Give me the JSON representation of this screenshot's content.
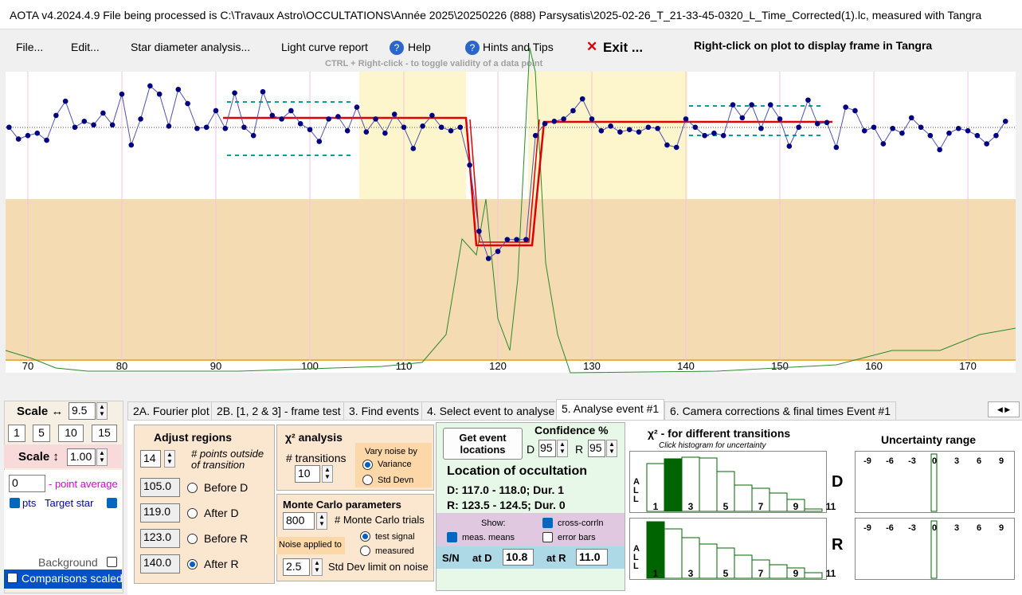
{
  "window": {
    "title": "AOTA v4.2024.4.9    File being processed is C:\\Travaux Astro\\OCCULTATIONS\\Année 2025\\20250226 (888) Parsysatis\\2025-02-26_T_21-33-45-0320_L_Time_Corrected(1).lc, measured with Tangra"
  },
  "menu": {
    "items": [
      "File...",
      "Edit...",
      "Star diameter analysis...",
      "Light curve report",
      "Help",
      "Hints and Tips",
      "Exit ..."
    ],
    "right_click_hint": "Right-click on plot to display frame in Tangra",
    "ctrl_hint": "CTRL + Right-click  -  to toggle validity of a data point"
  },
  "chart_data": {
    "type": "scatter",
    "x": [
      68,
      69,
      70,
      71,
      72,
      73,
      74,
      75,
      76,
      77,
      78,
      79,
      80,
      81,
      82,
      83,
      84,
      85,
      86,
      87,
      88,
      89,
      90,
      91,
      92,
      93,
      94,
      95,
      96,
      97,
      98,
      99,
      100,
      101,
      102,
      103,
      104,
      105,
      106,
      107,
      108,
      109,
      110,
      111,
      112,
      113,
      114,
      115,
      116,
      117,
      118,
      119,
      120,
      121,
      122,
      123,
      124,
      125,
      126,
      127,
      128,
      129,
      130,
      131,
      132,
      133,
      134,
      135,
      136,
      137,
      138,
      139,
      140,
      141,
      142,
      143,
      144,
      145,
      146,
      147,
      148,
      149,
      150,
      151,
      152,
      153,
      154,
      155,
      156,
      157,
      158,
      159,
      160,
      161,
      162,
      163,
      164,
      165,
      166,
      167,
      168,
      169,
      170,
      171,
      172,
      173,
      174
    ],
    "values": [
      1.0,
      0.9,
      0.93,
      0.95,
      0.89,
      1.1,
      1.22,
      1.0,
      1.05,
      1.02,
      1.12,
      1.02,
      1.28,
      0.85,
      1.07,
      1.35,
      1.28,
      1.01,
      1.32,
      1.2,
      0.99,
      1.0,
      1.14,
      0.99,
      1.29,
      1.0,
      0.93,
      1.3,
      1.1,
      1.07,
      1.14,
      1.03,
      0.98,
      0.88,
      1.07,
      1.09,
      0.97,
      1.17,
      0.96,
      1.07,
      0.95,
      1.11,
      1.0,
      0.82,
      1.01,
      1.1,
      1.0,
      0.97,
      1.0,
      0.68,
      0.12,
      -0.11,
      -0.05,
      0.05,
      0.05,
      0.05,
      0.93,
      1.03,
      1.05,
      1.07,
      1.14,
      1.24,
      1.07,
      0.97,
      1.01,
      0.96,
      0.98,
      0.96,
      1.0,
      0.99,
      0.85,
      0.83,
      1.07,
      1.0,
      0.93,
      0.95,
      0.93,
      1.19,
      1.08,
      1.19,
      0.99,
      1.19,
      1.07,
      0.84,
      1.0,
      1.23,
      1.03,
      1.04,
      0.83,
      1.17,
      1.14,
      0.97,
      1.0,
      0.86,
      0.99,
      0.95,
      1.08,
      1.0,
      0.93,
      0.81,
      0.95,
      0.99,
      0.97,
      0.93,
      0.86,
      0.93,
      1.05
    ],
    "color": "#000080",
    "xlim": [
      67.63,
      175.08
    ],
    "ylim": [
      -1.07,
      1.47
    ],
    "xticks": [
      70,
      80,
      90,
      100,
      110,
      120,
      130,
      140,
      150,
      160,
      170
    ]
  },
  "left_panel": {
    "scale_h_label": "Scale ↔",
    "scale_h": "9.5",
    "scale_buttons": [
      "1",
      "5",
      "10",
      "15"
    ],
    "scale_v_label": "Scale ↕",
    "scale_v": "1.00",
    "point_average": "0",
    "point_average_label": "- point average",
    "pts": "pts",
    "target_star": "Target star",
    "background": "Background",
    "comparisons": "Comparisons scaled"
  },
  "tabs": [
    "2A. Fourier plot",
    "2B. [1, 2 & 3] - frame test",
    "3. Find events",
    "4. Select event to analyse",
    "5. Analyse event #1",
    "6. Camera corrections & final times Event #1"
  ],
  "adjust_regions": {
    "title": "Adjust regions",
    "points": "14",
    "points_label": "# points outside of transition",
    "regions": [
      {
        "value": "105.0",
        "label": "Before D"
      },
      {
        "value": "119.0",
        "label": "After D"
      },
      {
        "value": "123.0",
        "label": "Before R"
      },
      {
        "value": "140.0",
        "label": "After R"
      }
    ]
  },
  "chi2_analysis": {
    "title": "χ² analysis",
    "transitions_label": "# transitions",
    "transitions": "10",
    "vary_label": "Vary noise by",
    "options": [
      "Variance",
      "Std Devn"
    ]
  },
  "monte_carlo": {
    "title": "Monte Carlo parameters",
    "trials": "800",
    "trials_label": "# Monte Carlo trials",
    "noise_label": "Noise applied to",
    "options": [
      "test signal",
      "measured"
    ],
    "sd_limit": "2.5",
    "sd_limit_label": "Std Dev limit on noise"
  },
  "occultation": {
    "button": "Get event locations",
    "confidence_label": "Confidence %",
    "d_label": "D",
    "d_conf": "95",
    "r_label": "R",
    "r_conf": "95",
    "location_title": "Location of occultation",
    "d_location": "D: 117.0 - 118.0; Dur. 1",
    "r_location": "R: 123.5 - 124.5; Dur. 0",
    "show_label": "Show:",
    "show_options": [
      "meas. means",
      "cross-corrln",
      "error bars"
    ],
    "sn_label": "S/N",
    "at_d": "at D",
    "sn_d": "10.8",
    "at_r": "at R",
    "sn_r": "11.0"
  },
  "histogram": {
    "title": "χ² - for different transitions",
    "subtitle": "Click histogram for uncertainty",
    "side_label": [
      "A",
      "L",
      "L"
    ],
    "bins": [
      "1",
      "3",
      "5",
      "7",
      "9",
      "11"
    ],
    "events": [
      "D",
      "R"
    ]
  },
  "uncertainty": {
    "title": "Uncertainty range",
    "ticks": [
      "-9",
      "-6",
      "-3",
      "0",
      "3",
      "6",
      "9"
    ]
  }
}
